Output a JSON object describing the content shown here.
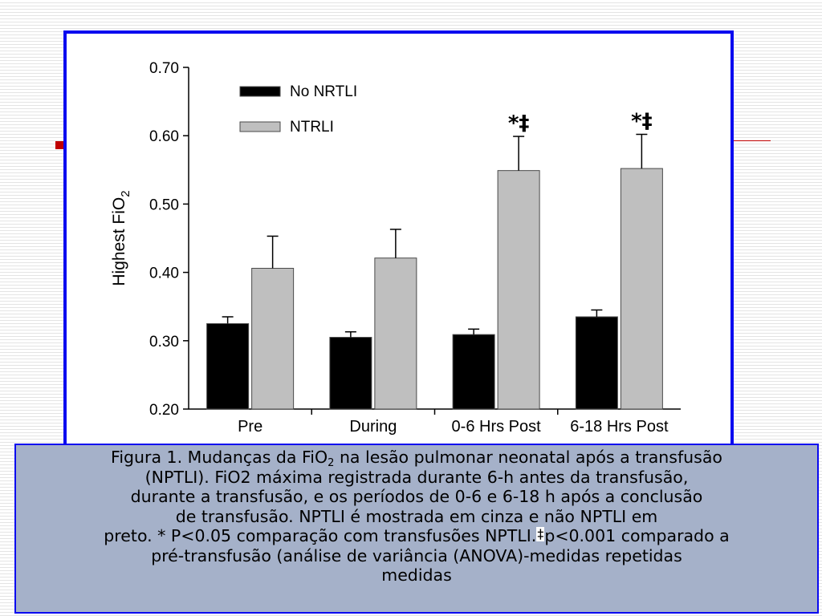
{
  "chart_data": {
    "type": "bar",
    "categories": [
      "Pre",
      "During",
      "0-6 Hrs Post",
      "6-18 Hrs Post"
    ],
    "series": [
      {
        "name": "No NRTLI",
        "color": "#000000",
        "values": [
          0.325,
          0.305,
          0.309,
          0.335
        ],
        "errors": [
          0.01,
          0.008,
          0.008,
          0.01
        ]
      },
      {
        "name": "NTRLI",
        "color": "#bfbfbf",
        "values": [
          0.406,
          0.421,
          0.549,
          0.552
        ],
        "errors": [
          0.047,
          0.042,
          0.05,
          0.05
        ]
      }
    ],
    "ylabel": "Highest FiO",
    "ylabel_subscript": "2",
    "ylim": [
      0.2,
      0.7
    ],
    "yticks": [
      "0.70",
      "0.60",
      "0.50",
      "0.40",
      "0.30",
      "0.20"
    ],
    "ytick_values": [
      0.7,
      0.6,
      0.5,
      0.4,
      0.3,
      0.2
    ],
    "annotations": [
      {
        "category": "0-6 Hrs Post",
        "text": "*‡"
      },
      {
        "category": "6-18 Hrs Post",
        "text": "*‡"
      }
    ],
    "legend_position": "top-left",
    "grid": false
  },
  "caption": {
    "line1_a": "Figura 1. Mudanças da FiO",
    "line1_sub": "2",
    "line1_b": " na lesão pulmonar neonatal após a transfusão",
    "line2": "(NPTLI). FiO2 máxima registrada durante  6-h antes da transfusão,",
    "line3": "durante a transfusão, e os períodos de 0-6 e 6-18 h após a conclusão",
    "line4": "de transfusão. NPTLI é mostrada em cinza e não NPTLI em",
    "line5_a": "preto. * P<0.05 comparação com transfusões NPTLI.",
    "line5_mark": "‡",
    "line5_b": "p<0.001 comparado a",
    "line6": "pré-transfusão (análise de variância (ANOVA)-medidas repetidas",
    "line7": "medidas"
  }
}
